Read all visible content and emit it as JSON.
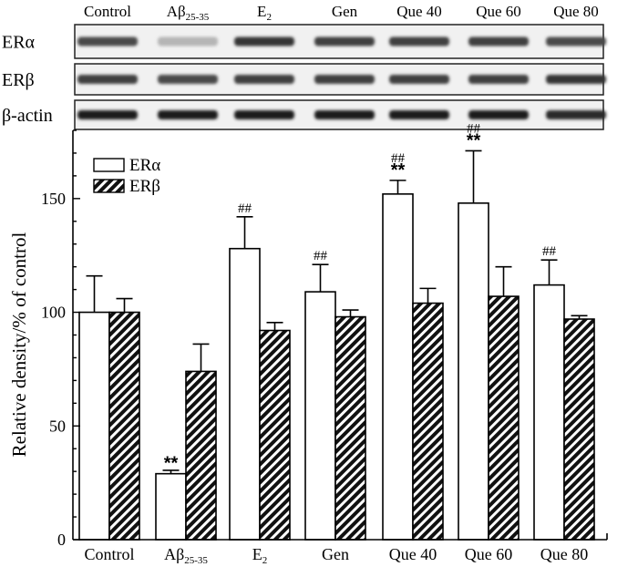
{
  "blot": {
    "lanes": [
      {
        "main": "Control",
        "sub": ""
      },
      {
        "main": "Aβ",
        "sub": "25-35"
      },
      {
        "main": "E",
        "sub": "2"
      },
      {
        "main": "Gen",
        "sub": ""
      },
      {
        "main": "Que 40",
        "sub": ""
      },
      {
        "main": "Que 60",
        "sub": ""
      },
      {
        "main": "Que 80",
        "sub": ""
      }
    ],
    "rows": [
      {
        "label": "ERα",
        "intensity": [
          0.75,
          0.25,
          0.85,
          0.8,
          0.8,
          0.8,
          0.75
        ]
      },
      {
        "label": "ERβ",
        "intensity": [
          0.8,
          0.75,
          0.8,
          0.8,
          0.8,
          0.8,
          0.85
        ]
      },
      {
        "label": "β-actin",
        "intensity": [
          0.95,
          0.95,
          0.95,
          0.95,
          0.95,
          0.95,
          0.9
        ]
      }
    ]
  },
  "chart_data": {
    "type": "bar",
    "categories": [
      {
        "main": "Control",
        "sub": ""
      },
      {
        "main": "Aβ",
        "sub": "25-35"
      },
      {
        "main": "E",
        "sub": "2"
      },
      {
        "main": "Gen",
        "sub": ""
      },
      {
        "main": "Que 40",
        "sub": ""
      },
      {
        "main": "Que 60",
        "sub": ""
      },
      {
        "main": "Que 80",
        "sub": ""
      }
    ],
    "series": [
      {
        "name": "ERα",
        "fill": "white",
        "values": [
          100,
          29,
          128,
          109,
          152,
          148,
          112
        ],
        "errors": [
          16,
          1.5,
          14,
          12,
          6,
          23,
          11
        ],
        "annotations": [
          "",
          "**",
          "##",
          "##",
          "##\n**",
          "##\n**",
          "##"
        ]
      },
      {
        "name": "ERβ",
        "fill": "hatched",
        "values": [
          100,
          74,
          92,
          98,
          104,
          107,
          97
        ],
        "errors": [
          6,
          12,
          3.5,
          3,
          6.5,
          13,
          1.5
        ],
        "annotations": [
          "",
          "",
          "",
          "",
          "",
          "",
          ""
        ]
      }
    ],
    "ylabel": "Relative density/% of control",
    "xlabel": "",
    "ylim": [
      0,
      180
    ],
    "yticks": [
      0,
      50,
      100,
      150
    ],
    "legend_position": "top-left"
  }
}
